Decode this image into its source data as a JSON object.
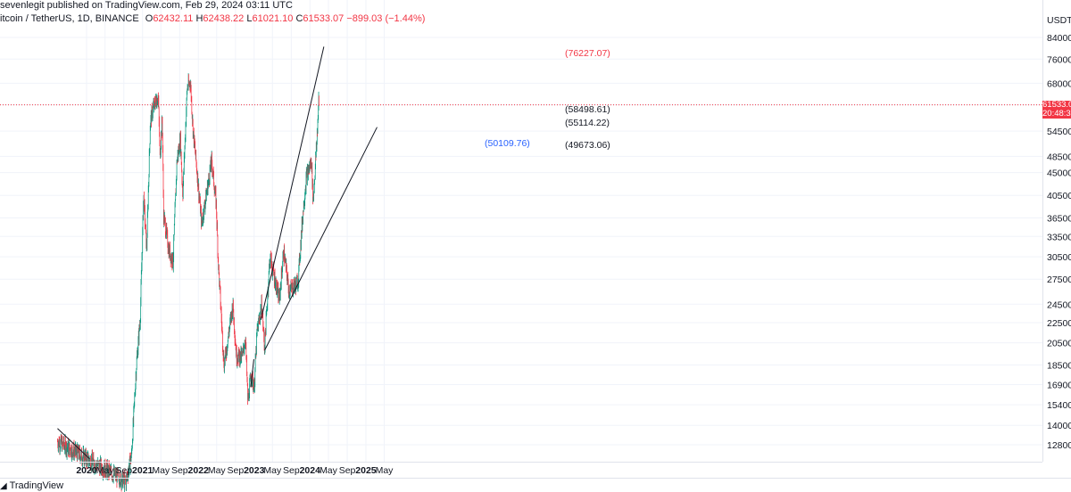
{
  "header": {
    "published": "sevenlegit published on TradingView.com, Feb 29, 2024 03:11 UTC",
    "symbol": "itcoin / TetherUS, 1D, BINANCE",
    "ohlc": {
      "o_label": "O",
      "o": "62432.11",
      "h_label": "H",
      "h": "62438.22",
      "l_label": "L",
      "l": "61021.10",
      "c_label": "C",
      "c": "61533.07",
      "change": "−899.03 (−1.44%)"
    }
  },
  "annotations": [
    {
      "text": "(76227.07)",
      "color": "#f23645"
    },
    {
      "text": "(58498.61)",
      "color": "#131722"
    },
    {
      "text": "(55114.22)",
      "color": "#131722"
    },
    {
      "text": "(50109.76)",
      "color": "#2962ff"
    },
    {
      "text": "(49673.06)",
      "color": "#131722"
    }
  ],
  "price_tag": {
    "price": "61533.0",
    "countdown": "20:48:3"
  },
  "footer": {
    "brand": "TradingView"
  },
  "colors": {
    "up": "#089981",
    "down": "#f23645",
    "grid": "#f0f3fa",
    "axis": "#e0e3eb",
    "last_price_line": "#f23645"
  },
  "chart_data": {
    "type": "candlestick",
    "symbol": "itcoin / TetherUS",
    "interval": "1D",
    "exchange": "BINANCE",
    "y_unit": "USDT",
    "y_scale": "log",
    "y_ticks": [
      84000,
      76000,
      68000,
      61533,
      54500,
      48500,
      45000,
      40500,
      36500,
      33500,
      30500,
      27500,
      24500,
      22500,
      20500,
      18500,
      16900,
      15400,
      14000,
      12800
    ],
    "y_tick_labels": [
      "84000.0",
      "76000.0",
      "68000.0",
      "61533.0",
      "54500.0",
      "48500.0",
      "45000.0",
      "40500.0",
      "36500.0",
      "33500.0",
      "30500.0",
      "27500.0",
      "24500.0",
      "22500.0",
      "20500.0",
      "18500.0",
      "16900.0",
      "15400.0",
      "14000.0",
      "12800.0"
    ],
    "x_ticks": [
      {
        "label": "2020",
        "date": "2020-01-01",
        "bold": true
      },
      {
        "label": "May",
        "date": "2020-05-01",
        "bold": false
      },
      {
        "label": "Sep",
        "date": "2020-09-01",
        "bold": false
      },
      {
        "label": "2021",
        "date": "2021-01-01",
        "bold": true
      },
      {
        "label": "May",
        "date": "2021-05-01",
        "bold": false
      },
      {
        "label": "Sep",
        "date": "2021-09-01",
        "bold": false
      },
      {
        "label": "2022",
        "date": "2022-01-01",
        "bold": true
      },
      {
        "label": "May",
        "date": "2022-05-01",
        "bold": false
      },
      {
        "label": "Sep",
        "date": "2022-09-01",
        "bold": false
      },
      {
        "label": "2023",
        "date": "2023-01-01",
        "bold": true
      },
      {
        "label": "May",
        "date": "2023-05-01",
        "bold": false
      },
      {
        "label": "Sep",
        "date": "2023-09-01",
        "bold": false
      },
      {
        "label": "2024",
        "date": "2024-01-01",
        "bold": true
      },
      {
        "label": "May",
        "date": "2024-05-01",
        "bold": false
      },
      {
        "label": "Sep",
        "date": "2024-09-01",
        "bold": false
      },
      {
        "label": "2025",
        "date": "2025-01-01",
        "bold": true
      },
      {
        "label": "May",
        "date": "2025-05-01",
        "bold": false
      }
    ],
    "last_price": 61533.07,
    "trendlines": [
      {
        "from": {
          "date": "2019-06-25",
          "price": 13800
        },
        "to": {
          "date": "2020-01-20",
          "price": 12000
        }
      },
      {
        "from": {
          "date": "2023-02-15",
          "price": 22800
        },
        "to": {
          "date": "2024-04-01",
          "price": 80500
        }
      },
      {
        "from": {
          "date": "2023-03-11",
          "price": 19800
        },
        "to": {
          "date": "2025-03-15",
          "price": 55500
        }
      },
      {
        "from": {
          "date": "2022-12-10",
          "price": 16700
        },
        "to": {
          "date": "2022-12-30",
          "price": 19000
        }
      }
    ],
    "price_path": [
      [
        "2019-06-25",
        13000
      ],
      [
        "2020-09-15",
        10800
      ],
      [
        "2020-10-21",
        12200
      ],
      [
        "2020-11-22",
        18500
      ],
      [
        "2020-12-17",
        23000
      ],
      [
        "2021-01-08",
        40500
      ],
      [
        "2021-01-28",
        31500
      ],
      [
        "2021-02-21",
        57000
      ],
      [
        "2021-03-13",
        61000
      ],
      [
        "2021-04-14",
        64000
      ],
      [
        "2021-04-25",
        48500
      ],
      [
        "2021-05-10",
        58000
      ],
      [
        "2021-05-19",
        37000
      ],
      [
        "2021-06-22",
        31500
      ],
      [
        "2021-07-20",
        29800
      ],
      [
        "2021-08-14",
        47500
      ],
      [
        "2021-09-06",
        52500
      ],
      [
        "2021-09-21",
        40500
      ],
      [
        "2021-10-20",
        66500
      ],
      [
        "2021-11-10",
        68500
      ],
      [
        "2021-11-28",
        54500
      ],
      [
        "2021-12-20",
        46500
      ],
      [
        "2022-01-23",
        35500
      ],
      [
        "2022-03-29",
        47500
      ],
      [
        "2022-04-28",
        39000
      ],
      [
        "2022-05-12",
        29500
      ],
      [
        "2022-06-18",
        18500
      ],
      [
        "2022-07-05",
        20000
      ],
      [
        "2022-08-15",
        24500
      ],
      [
        "2022-09-07",
        19300
      ],
      [
        "2022-10-15",
        19200
      ],
      [
        "2022-11-05",
        21000
      ],
      [
        "2022-11-21",
        15600
      ],
      [
        "2022-12-14",
        17800
      ],
      [
        "2023-01-01",
        16600
      ],
      [
        "2023-01-20",
        21500
      ],
      [
        "2023-02-20",
        24500
      ],
      [
        "2023-03-10",
        20000
      ],
      [
        "2023-04-14",
        30500
      ],
      [
        "2023-06-15",
        25000
      ],
      [
        "2023-07-13",
        31300
      ],
      [
        "2023-08-18",
        26000
      ],
      [
        "2023-10-15",
        27200
      ],
      [
        "2023-11-15",
        37000
      ],
      [
        "2023-12-08",
        44000
      ],
      [
        "2024-01-11",
        47500
      ],
      [
        "2024-01-22",
        39500
      ],
      [
        "2024-02-15",
        52000
      ],
      [
        "2024-02-28",
        63500
      ],
      [
        "2024-02-29",
        61533
      ]
    ]
  }
}
